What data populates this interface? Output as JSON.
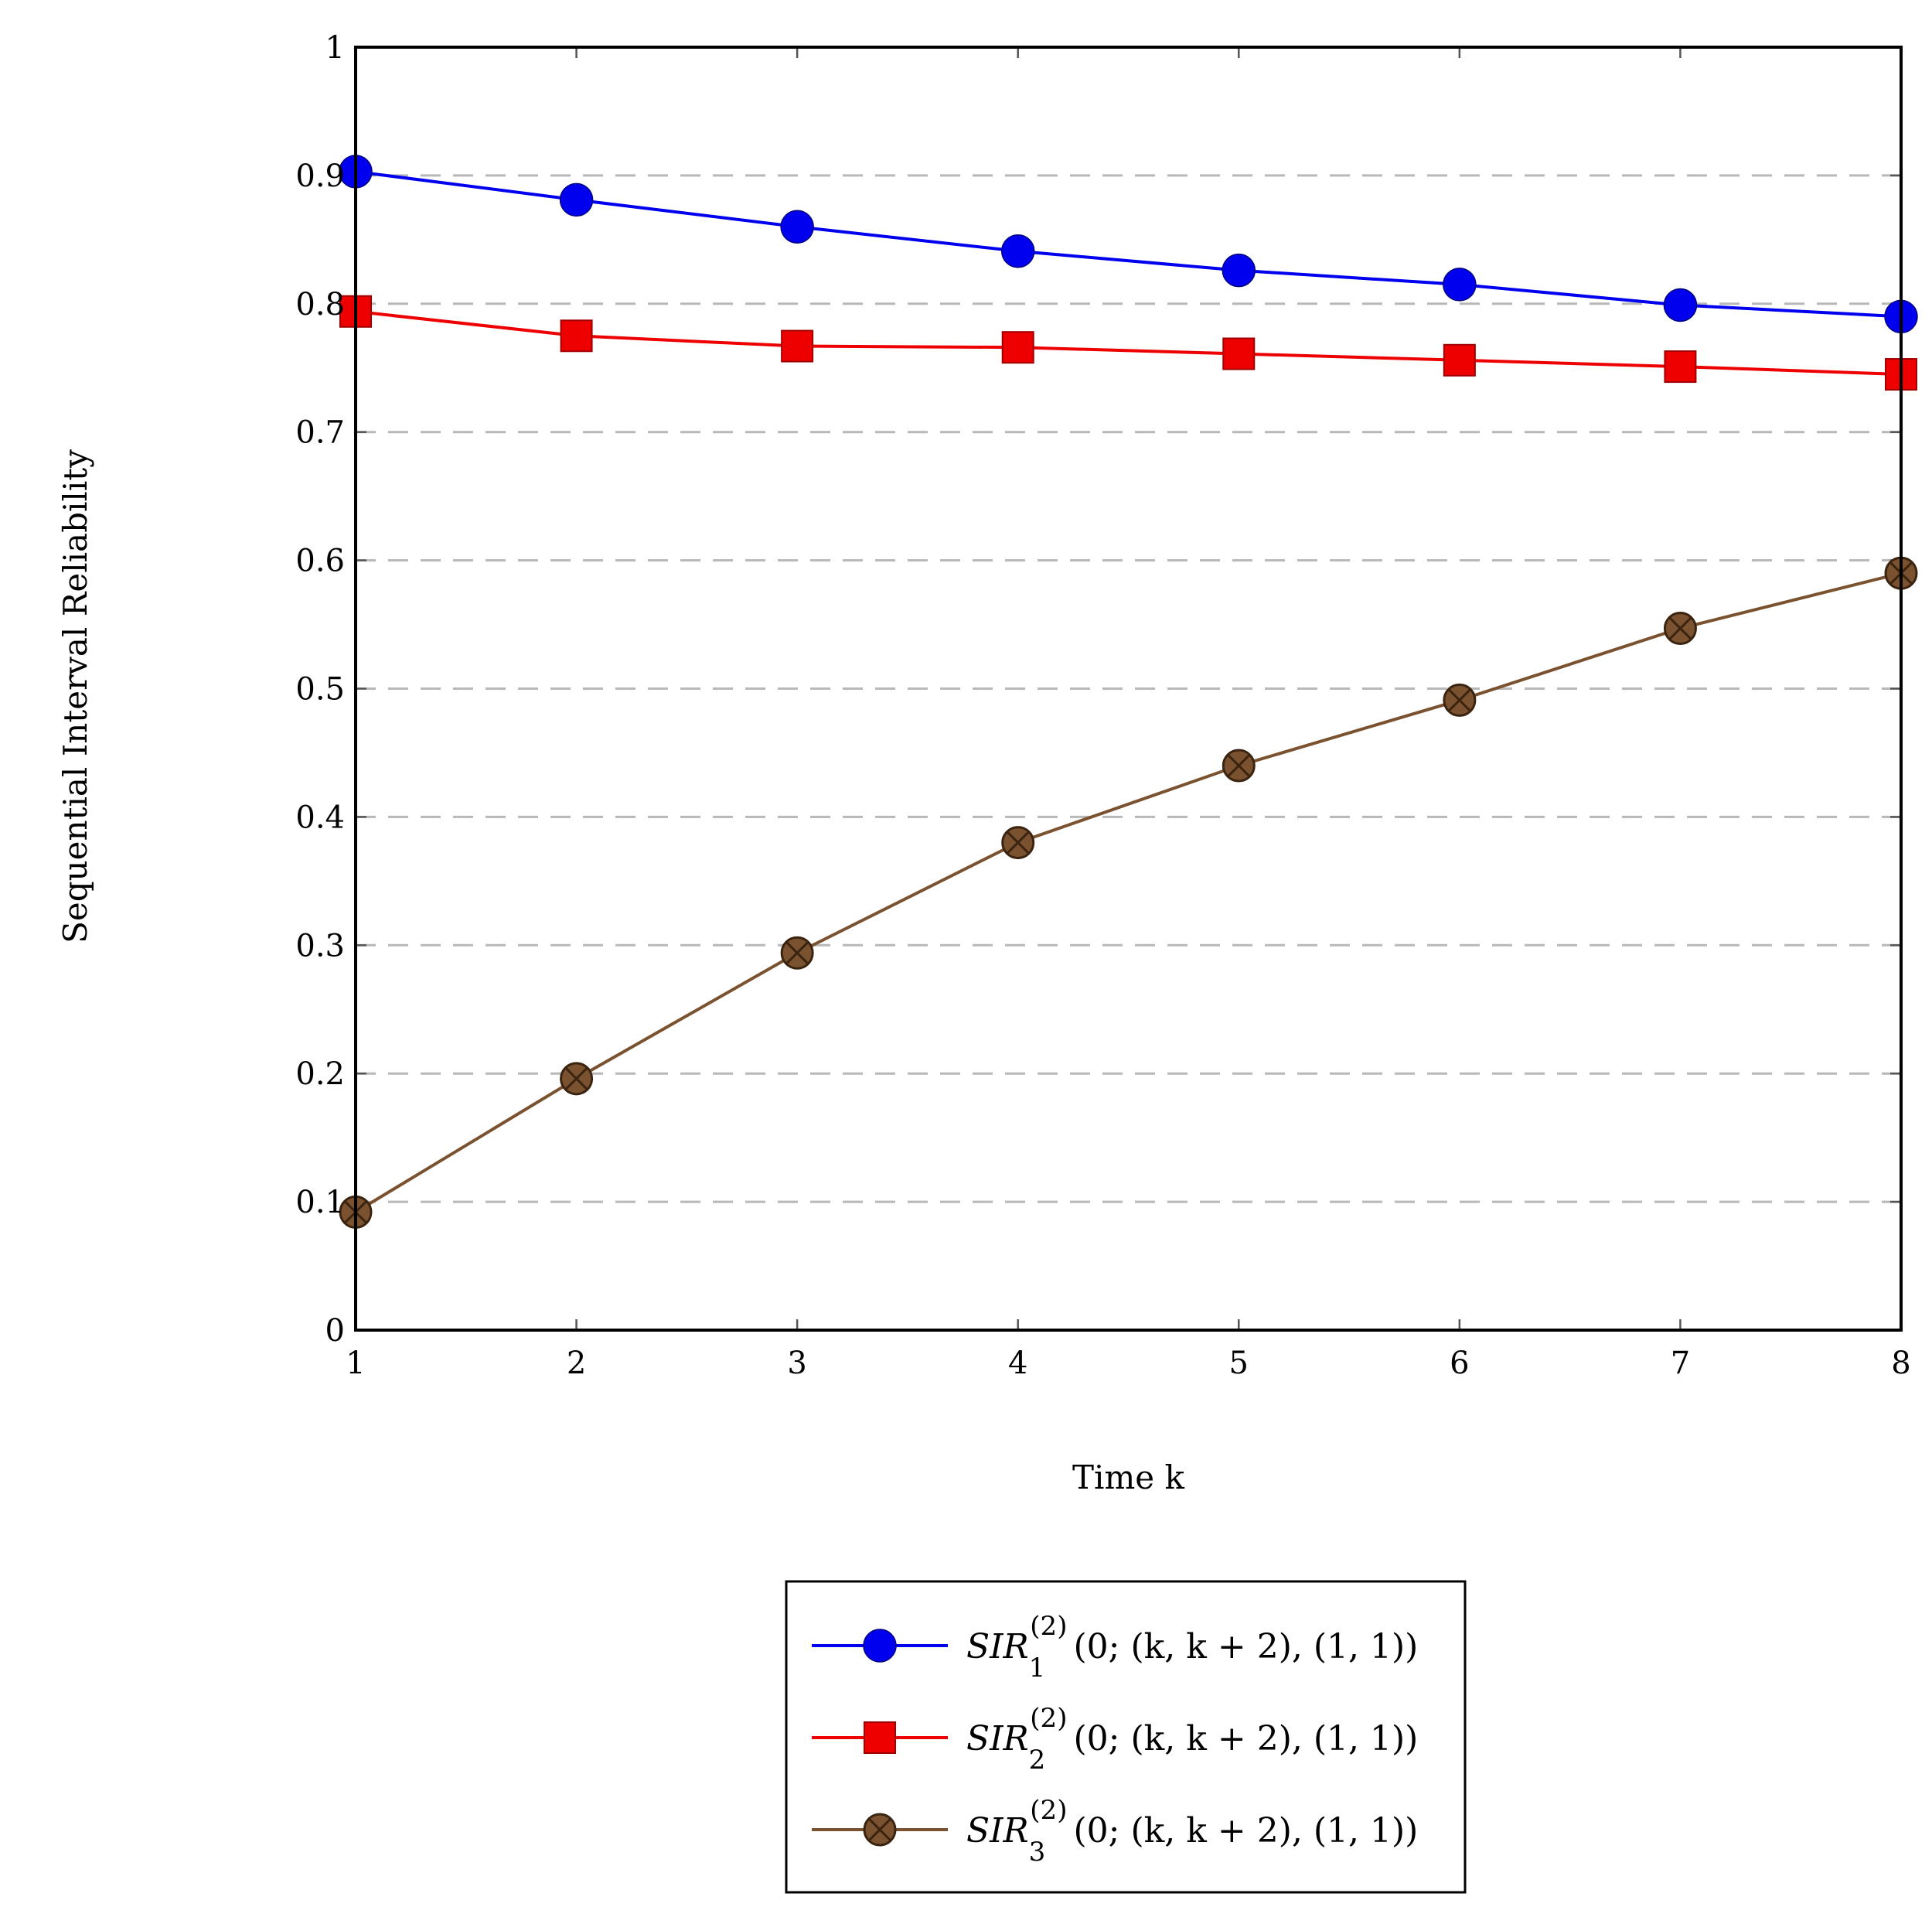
{
  "chart_data": {
    "type": "line",
    "title": "",
    "xlabel": "Time k",
    "ylabel": "Sequential Interval Reliability",
    "x": [
      1,
      2,
      3,
      4,
      5,
      6,
      7,
      8
    ],
    "xlim": [
      1,
      8
    ],
    "ylim": [
      0,
      1
    ],
    "xticks": [
      "1",
      "2",
      "3",
      "4",
      "5",
      "6",
      "7",
      "8"
    ],
    "yticks": [
      "0",
      "0.1",
      "0.2",
      "0.3",
      "0.4",
      "0.5",
      "0.6",
      "0.7",
      "0.8",
      "0.9",
      "1"
    ],
    "grid": "horizontal dashed",
    "legend_position": "bottom-center",
    "series": [
      {
        "name": "SIR_1^(2)(0;(k,k+2),(1,1))",
        "legend": {
          "base": "SIR",
          "sub": "1",
          "sup": "(2)",
          "args": "(0; (k, k + 2), (1, 1))"
        },
        "color": "#0000ee",
        "marker": "circle",
        "values": [
          0.903,
          0.881,
          0.86,
          0.841,
          0.826,
          0.815,
          0.799,
          0.79
        ]
      },
      {
        "name": "SIR_2^(2)(0;(k,k+2),(1,1))",
        "legend": {
          "base": "SIR",
          "sub": "2",
          "sup": "(2)",
          "args": "(0; (k, k + 2), (1, 1))"
        },
        "color": "#ee0000",
        "marker": "square",
        "values": [
          0.794,
          0.775,
          0.767,
          0.766,
          0.761,
          0.756,
          0.751,
          0.745
        ]
      },
      {
        "name": "SIR_3^(2)(0;(k,k+2),(1,1))",
        "legend": {
          "base": "SIR",
          "sub": "3",
          "sup": "(2)",
          "args": "(0; (k, k + 2), (1, 1))"
        },
        "color": "#7a5230",
        "marker": "otimes",
        "values": [
          0.092,
          0.196,
          0.294,
          0.38,
          0.44,
          0.491,
          0.547,
          0.59
        ]
      }
    ]
  }
}
